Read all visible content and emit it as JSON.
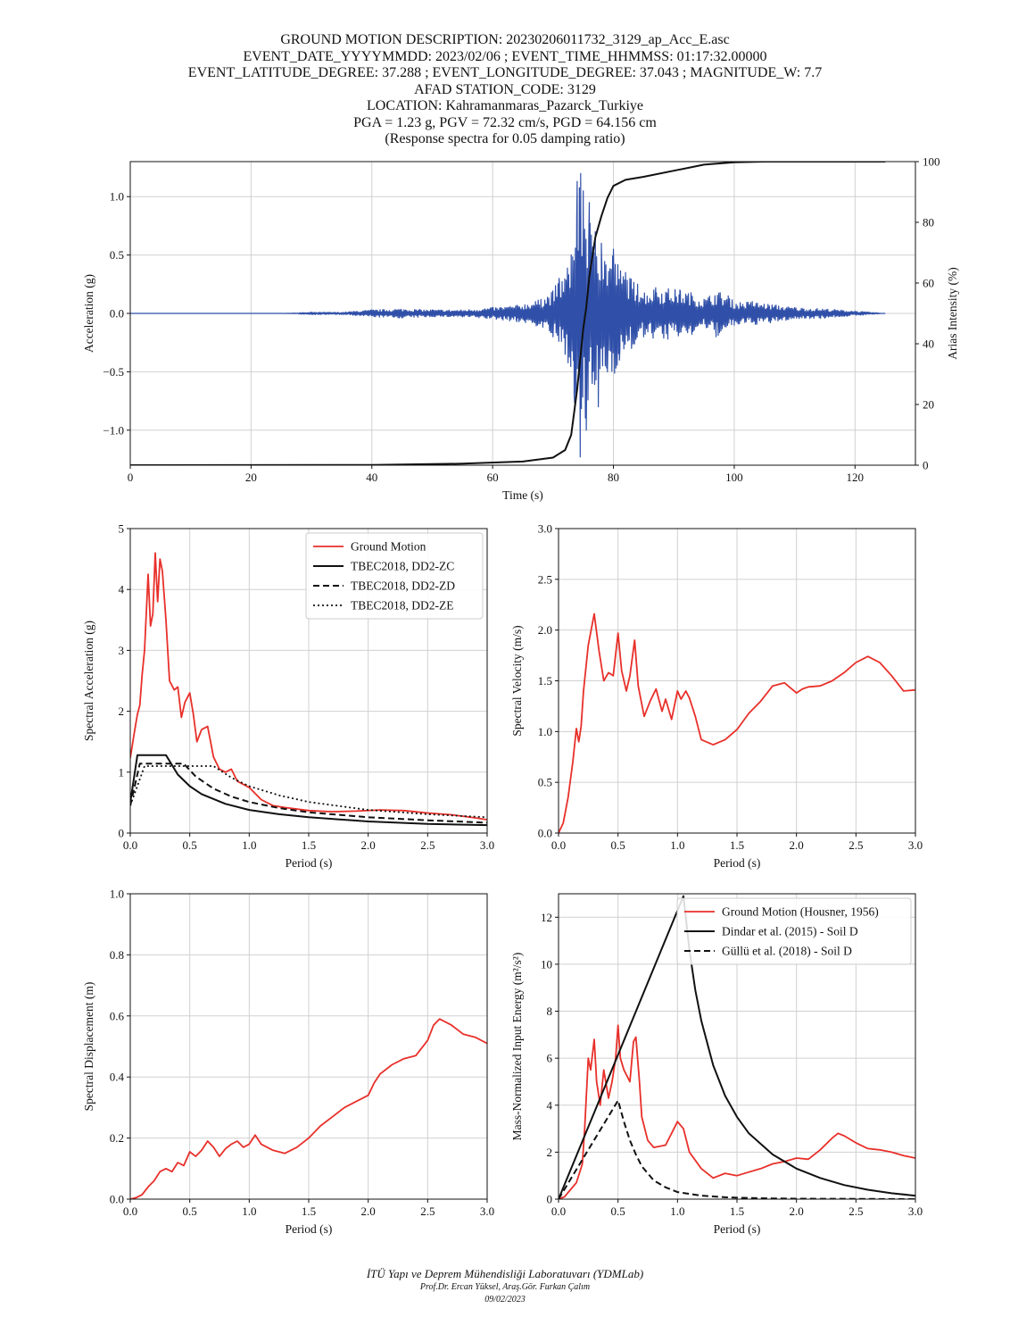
{
  "header": {
    "lines": [
      "GROUND MOTION DESCRIPTION: 20230206011732_3129_ap_Acc_E.asc",
      "EVENT_DATE_YYYYMMDD: 2023/02/06 ; EVENT_TIME_HHMMSS: 01:17:32.00000",
      "EVENT_LATITUDE_DEGREE: 37.288 ; EVENT_LONGITUDE_DEGREE: 37.043 ; MAGNITUDE_W: 7.7",
      "AFAD STATION_CODE: 3129",
      "LOCATION: Kahramanmaras_Pazarck_Turkiye",
      "PGA = 1.23 g, PGV = 72.32 cm/s, PGD = 64.156 cm",
      "(Response spectra for 0.05 damping ratio)"
    ]
  },
  "footer": {
    "line1": "İTÜ Yapı ve Deprem Mühendisliği Laboratuvarı (YDMLab)",
    "line2": "Prof.Dr. Ercan Yüksel, Araş.Gör. Furkan Çalım",
    "line3": "09/02/2023"
  },
  "colors": {
    "ground_motion": "#e8302a",
    "acceleration": "#2f4fa8",
    "reference": "#111111",
    "grid": "#d0d0d0"
  },
  "chart_data": [
    {
      "id": "time_history",
      "type": "line",
      "xlabel": "Time (s)",
      "ylabel": "Acceleration (g)",
      "y2label": "Arias Intensity (%)",
      "xlim": [
        0,
        130
      ],
      "ylim": [
        -1.3,
        1.3
      ],
      "y2lim": [
        0,
        100
      ],
      "xticks": [
        0,
        20,
        40,
        60,
        80,
        100,
        120
      ],
      "yticks": [
        -1.0,
        -0.5,
        0.0,
        0.5,
        1.0
      ],
      "y2ticks": [
        0,
        20,
        40,
        60,
        80,
        100
      ],
      "grid": true,
      "series": [
        {
          "style": "acceleration",
          "x": [
            0,
            25,
            30,
            35,
            40,
            45,
            50,
            55,
            60,
            64,
            68,
            70,
            71,
            72,
            73,
            73.5,
            74,
            74.5,
            75,
            75.5,
            76,
            76.5,
            77,
            77.5,
            78,
            79,
            80,
            81,
            82,
            83,
            84,
            85,
            87,
            89,
            91,
            93,
            95,
            97,
            99,
            100,
            103,
            106,
            110,
            115,
            120,
            125
          ],
          "y": [
            0.0,
            0.0,
            0.01,
            -0.01,
            0.03,
            -0.04,
            0.03,
            -0.03,
            0.05,
            -0.07,
            0.12,
            -0.2,
            0.3,
            -0.35,
            0.5,
            -0.7,
            1.13,
            -1.23,
            1.05,
            -1.0,
            0.95,
            -0.6,
            0.7,
            -0.8,
            0.6,
            -0.5,
            0.55,
            -0.4,
            0.35,
            -0.3,
            0.25,
            -0.2,
            0.22,
            -0.22,
            0.2,
            -0.18,
            0.12,
            -0.2,
            0.15,
            -0.1,
            0.1,
            -0.08,
            0.05,
            -0.04,
            0.02,
            0.0
          ]
        },
        {
          "style": "arias",
          "axis": "y2",
          "x": [
            0,
            40,
            55,
            65,
            70,
            72,
            73,
            74,
            74.5,
            75,
            75.5,
            76,
            77,
            78,
            79,
            80,
            82,
            85,
            90,
            95,
            100,
            105,
            110,
            125
          ],
          "y": [
            0,
            0.1,
            0.5,
            1.2,
            2.5,
            5,
            10,
            25,
            35,
            45,
            52,
            62,
            75,
            82,
            88,
            92,
            94,
            95,
            97,
            99,
            99.8,
            100,
            100,
            100
          ]
        }
      ]
    },
    {
      "id": "spectral_acceleration",
      "type": "line",
      "xlabel": "Period (s)",
      "ylabel": "Spectral Acceleration (g)",
      "xlim": [
        0,
        3.0
      ],
      "ylim": [
        0,
        5
      ],
      "xticks": [
        0.0,
        0.5,
        1.0,
        1.5,
        2.0,
        2.5,
        3.0
      ],
      "yticks": [
        0,
        1,
        2,
        3,
        4,
        5
      ],
      "grid": true,
      "legend": "top-right",
      "series": [
        {
          "name": "Ground Motion",
          "style": "ground_motion",
          "x": [
            0,
            0.03,
            0.06,
            0.08,
            0.1,
            0.12,
            0.15,
            0.17,
            0.19,
            0.21,
            0.22,
            0.23,
            0.25,
            0.27,
            0.3,
            0.33,
            0.37,
            0.4,
            0.43,
            0.46,
            0.5,
            0.53,
            0.56,
            0.6,
            0.65,
            0.7,
            0.75,
            0.8,
            0.85,
            0.9,
            1.0,
            1.1,
            1.2,
            1.3,
            1.5,
            1.7,
            1.9,
            2.1,
            2.3,
            2.5,
            2.7,
            2.9,
            3.0
          ],
          "y": [
            1.23,
            1.6,
            1.95,
            2.1,
            2.6,
            3.0,
            4.25,
            3.4,
            3.6,
            4.6,
            4.2,
            3.8,
            4.5,
            4.3,
            3.5,
            2.5,
            2.35,
            2.4,
            1.9,
            2.15,
            2.3,
            1.95,
            1.5,
            1.7,
            1.75,
            1.25,
            1.05,
            1.0,
            1.05,
            0.85,
            0.75,
            0.55,
            0.45,
            0.42,
            0.37,
            0.35,
            0.36,
            0.38,
            0.37,
            0.33,
            0.3,
            0.25,
            0.22
          ]
        },
        {
          "name": "TBEC2018, DD2-ZC",
          "style": "ref_solid",
          "x": [
            0,
            0.06,
            0.3,
            0.4,
            0.5,
            0.6,
            0.8,
            1.0,
            1.25,
            1.5,
            2.0,
            2.5,
            3.0
          ],
          "y": [
            0.5,
            1.28,
            1.28,
            0.96,
            0.77,
            0.64,
            0.48,
            0.38,
            0.31,
            0.26,
            0.19,
            0.15,
            0.13
          ]
        },
        {
          "name": "TBEC2018, DD2-ZD",
          "style": "ref_dashed",
          "x": [
            0,
            0.08,
            0.45,
            0.55,
            0.7,
            0.85,
            1.0,
            1.25,
            1.5,
            2.0,
            2.5,
            3.0
          ],
          "y": [
            0.45,
            1.14,
            1.14,
            0.93,
            0.73,
            0.6,
            0.51,
            0.41,
            0.34,
            0.26,
            0.21,
            0.17
          ]
        },
        {
          "name": "TBEC2018, DD2-ZE",
          "style": "ref_dotted",
          "x": [
            0,
            0.12,
            0.7,
            0.85,
            1.0,
            1.25,
            1.5,
            2.0,
            2.5,
            3.0
          ],
          "y": [
            0.45,
            1.1,
            1.1,
            0.91,
            0.77,
            0.62,
            0.51,
            0.38,
            0.31,
            0.26
          ]
        }
      ]
    },
    {
      "id": "spectral_velocity",
      "type": "line",
      "xlabel": "Period (s)",
      "ylabel": "Spectral Velocity (m/s)",
      "xlim": [
        0,
        3.0
      ],
      "ylim": [
        0,
        3.0
      ],
      "xticks": [
        0.0,
        0.5,
        1.0,
        1.5,
        2.0,
        2.5,
        3.0
      ],
      "yticks": [
        0.0,
        0.5,
        1.0,
        1.5,
        2.0,
        2.5,
        3.0
      ],
      "grid": true,
      "series": [
        {
          "name": "Ground Motion",
          "style": "ground_motion",
          "x": [
            0,
            0.04,
            0.08,
            0.12,
            0.15,
            0.17,
            0.19,
            0.21,
            0.25,
            0.3,
            0.34,
            0.38,
            0.42,
            0.46,
            0.5,
            0.53,
            0.57,
            0.6,
            0.64,
            0.67,
            0.72,
            0.77,
            0.82,
            0.87,
            0.9,
            0.95,
            1.0,
            1.03,
            1.07,
            1.1,
            1.15,
            1.2,
            1.3,
            1.4,
            1.5,
            1.6,
            1.7,
            1.8,
            1.9,
            2.0,
            2.05,
            2.1,
            2.2,
            2.3,
            2.4,
            2.5,
            2.6,
            2.7,
            2.8,
            2.9,
            3.0
          ],
          "y": [
            0,
            0.1,
            0.35,
            0.7,
            1.03,
            0.9,
            1.05,
            1.4,
            1.85,
            2.16,
            1.8,
            1.5,
            1.58,
            1.55,
            1.97,
            1.6,
            1.4,
            1.55,
            1.9,
            1.45,
            1.15,
            1.3,
            1.42,
            1.2,
            1.32,
            1.12,
            1.4,
            1.32,
            1.4,
            1.33,
            1.15,
            0.92,
            0.87,
            0.92,
            1.02,
            1.18,
            1.3,
            1.45,
            1.48,
            1.38,
            1.42,
            1.44,
            1.45,
            1.5,
            1.58,
            1.68,
            1.74,
            1.68,
            1.55,
            1.4,
            1.41
          ]
        }
      ]
    },
    {
      "id": "spectral_displacement",
      "type": "line",
      "xlabel": "Period (s)",
      "ylabel": "Spectral Displacement (m)",
      "xlim": [
        0,
        3.0
      ],
      "ylim": [
        0,
        1.0
      ],
      "xticks": [
        0.0,
        0.5,
        1.0,
        1.5,
        2.0,
        2.5,
        3.0
      ],
      "yticks": [
        0.0,
        0.2,
        0.4,
        0.6,
        0.8,
        1.0
      ],
      "grid": true,
      "series": [
        {
          "name": "Ground Motion",
          "style": "ground_motion",
          "x": [
            0,
            0.05,
            0.1,
            0.15,
            0.2,
            0.25,
            0.3,
            0.35,
            0.4,
            0.45,
            0.5,
            0.55,
            0.6,
            0.65,
            0.7,
            0.75,
            0.8,
            0.85,
            0.9,
            0.95,
            1.0,
            1.05,
            1.1,
            1.2,
            1.3,
            1.4,
            1.5,
            1.6,
            1.7,
            1.8,
            1.9,
            2.0,
            2.05,
            2.1,
            2.2,
            2.3,
            2.4,
            2.5,
            2.55,
            2.6,
            2.7,
            2.8,
            2.9,
            3.0
          ],
          "y": [
            0,
            0.005,
            0.015,
            0.04,
            0.06,
            0.09,
            0.1,
            0.09,
            0.12,
            0.11,
            0.155,
            0.14,
            0.16,
            0.19,
            0.17,
            0.14,
            0.165,
            0.18,
            0.19,
            0.17,
            0.18,
            0.21,
            0.18,
            0.16,
            0.15,
            0.17,
            0.2,
            0.24,
            0.27,
            0.3,
            0.32,
            0.34,
            0.38,
            0.41,
            0.44,
            0.46,
            0.47,
            0.52,
            0.57,
            0.59,
            0.57,
            0.54,
            0.53,
            0.51
          ]
        }
      ]
    },
    {
      "id": "input_energy",
      "type": "line",
      "xlabel": "Period (s)",
      "ylabel": "Mass-Normalized Input Energy (m²/s²)",
      "xlim": [
        0,
        3.0
      ],
      "ylim": [
        0,
        13
      ],
      "xticks": [
        0.0,
        0.5,
        1.0,
        1.5,
        2.0,
        2.5,
        3.0
      ],
      "yticks": [
        0,
        2,
        4,
        6,
        8,
        10,
        12
      ],
      "grid": true,
      "legend": "top-right",
      "series": [
        {
          "name": "Ground Motion (Housner, 1956)",
          "style": "ground_motion",
          "x": [
            0,
            0.05,
            0.1,
            0.15,
            0.2,
            0.22,
            0.25,
            0.27,
            0.3,
            0.32,
            0.35,
            0.38,
            0.42,
            0.45,
            0.48,
            0.5,
            0.52,
            0.55,
            0.6,
            0.63,
            0.65,
            0.68,
            0.7,
            0.75,
            0.8,
            0.9,
            0.95,
            1.0,
            1.05,
            1.1,
            1.2,
            1.3,
            1.4,
            1.5,
            1.6,
            1.7,
            1.8,
            1.9,
            2.0,
            2.1,
            2.2,
            2.3,
            2.35,
            2.4,
            2.5,
            2.6,
            2.7,
            2.8,
            2.9,
            3.0
          ],
          "y": [
            0,
            0.1,
            0.4,
            0.7,
            1.5,
            3.0,
            6.0,
            5.5,
            6.8,
            5.0,
            4.0,
            5.5,
            4.3,
            5.0,
            6.0,
            7.4,
            6.0,
            5.5,
            5.0,
            6.7,
            6.9,
            5.0,
            3.5,
            2.5,
            2.2,
            2.3,
            2.8,
            3.3,
            3.0,
            2.0,
            1.3,
            0.9,
            1.1,
            1.0,
            1.15,
            1.3,
            1.5,
            1.6,
            1.75,
            1.7,
            2.1,
            2.6,
            2.8,
            2.7,
            2.4,
            2.15,
            2.1,
            2.0,
            1.85,
            1.75
          ]
        },
        {
          "name": "Dindar et al. (2015) - Soil D",
          "style": "ref_solid",
          "x": [
            0,
            1.05,
            1.1,
            1.15,
            1.2,
            1.3,
            1.4,
            1.5,
            1.6,
            1.8,
            2.0,
            2.2,
            2.4,
            2.6,
            2.8,
            3.0
          ],
          "y": [
            0,
            12.9,
            10.6,
            8.9,
            7.6,
            5.7,
            4.4,
            3.5,
            2.8,
            1.9,
            1.3,
            0.9,
            0.6,
            0.4,
            0.25,
            0.15
          ]
        },
        {
          "name": "Güllü et al. (2018) - Soil D",
          "style": "ref_dashed",
          "x": [
            0,
            0.5,
            0.55,
            0.6,
            0.65,
            0.7,
            0.8,
            0.9,
            1.0,
            1.2,
            1.4,
            1.6,
            1.8,
            2.0,
            2.5,
            3.0
          ],
          "y": [
            0,
            4.2,
            3.3,
            2.5,
            1.9,
            1.4,
            0.8,
            0.5,
            0.3,
            0.15,
            0.08,
            0.05,
            0.03,
            0.02,
            0.01,
            0.0
          ]
        }
      ]
    }
  ]
}
